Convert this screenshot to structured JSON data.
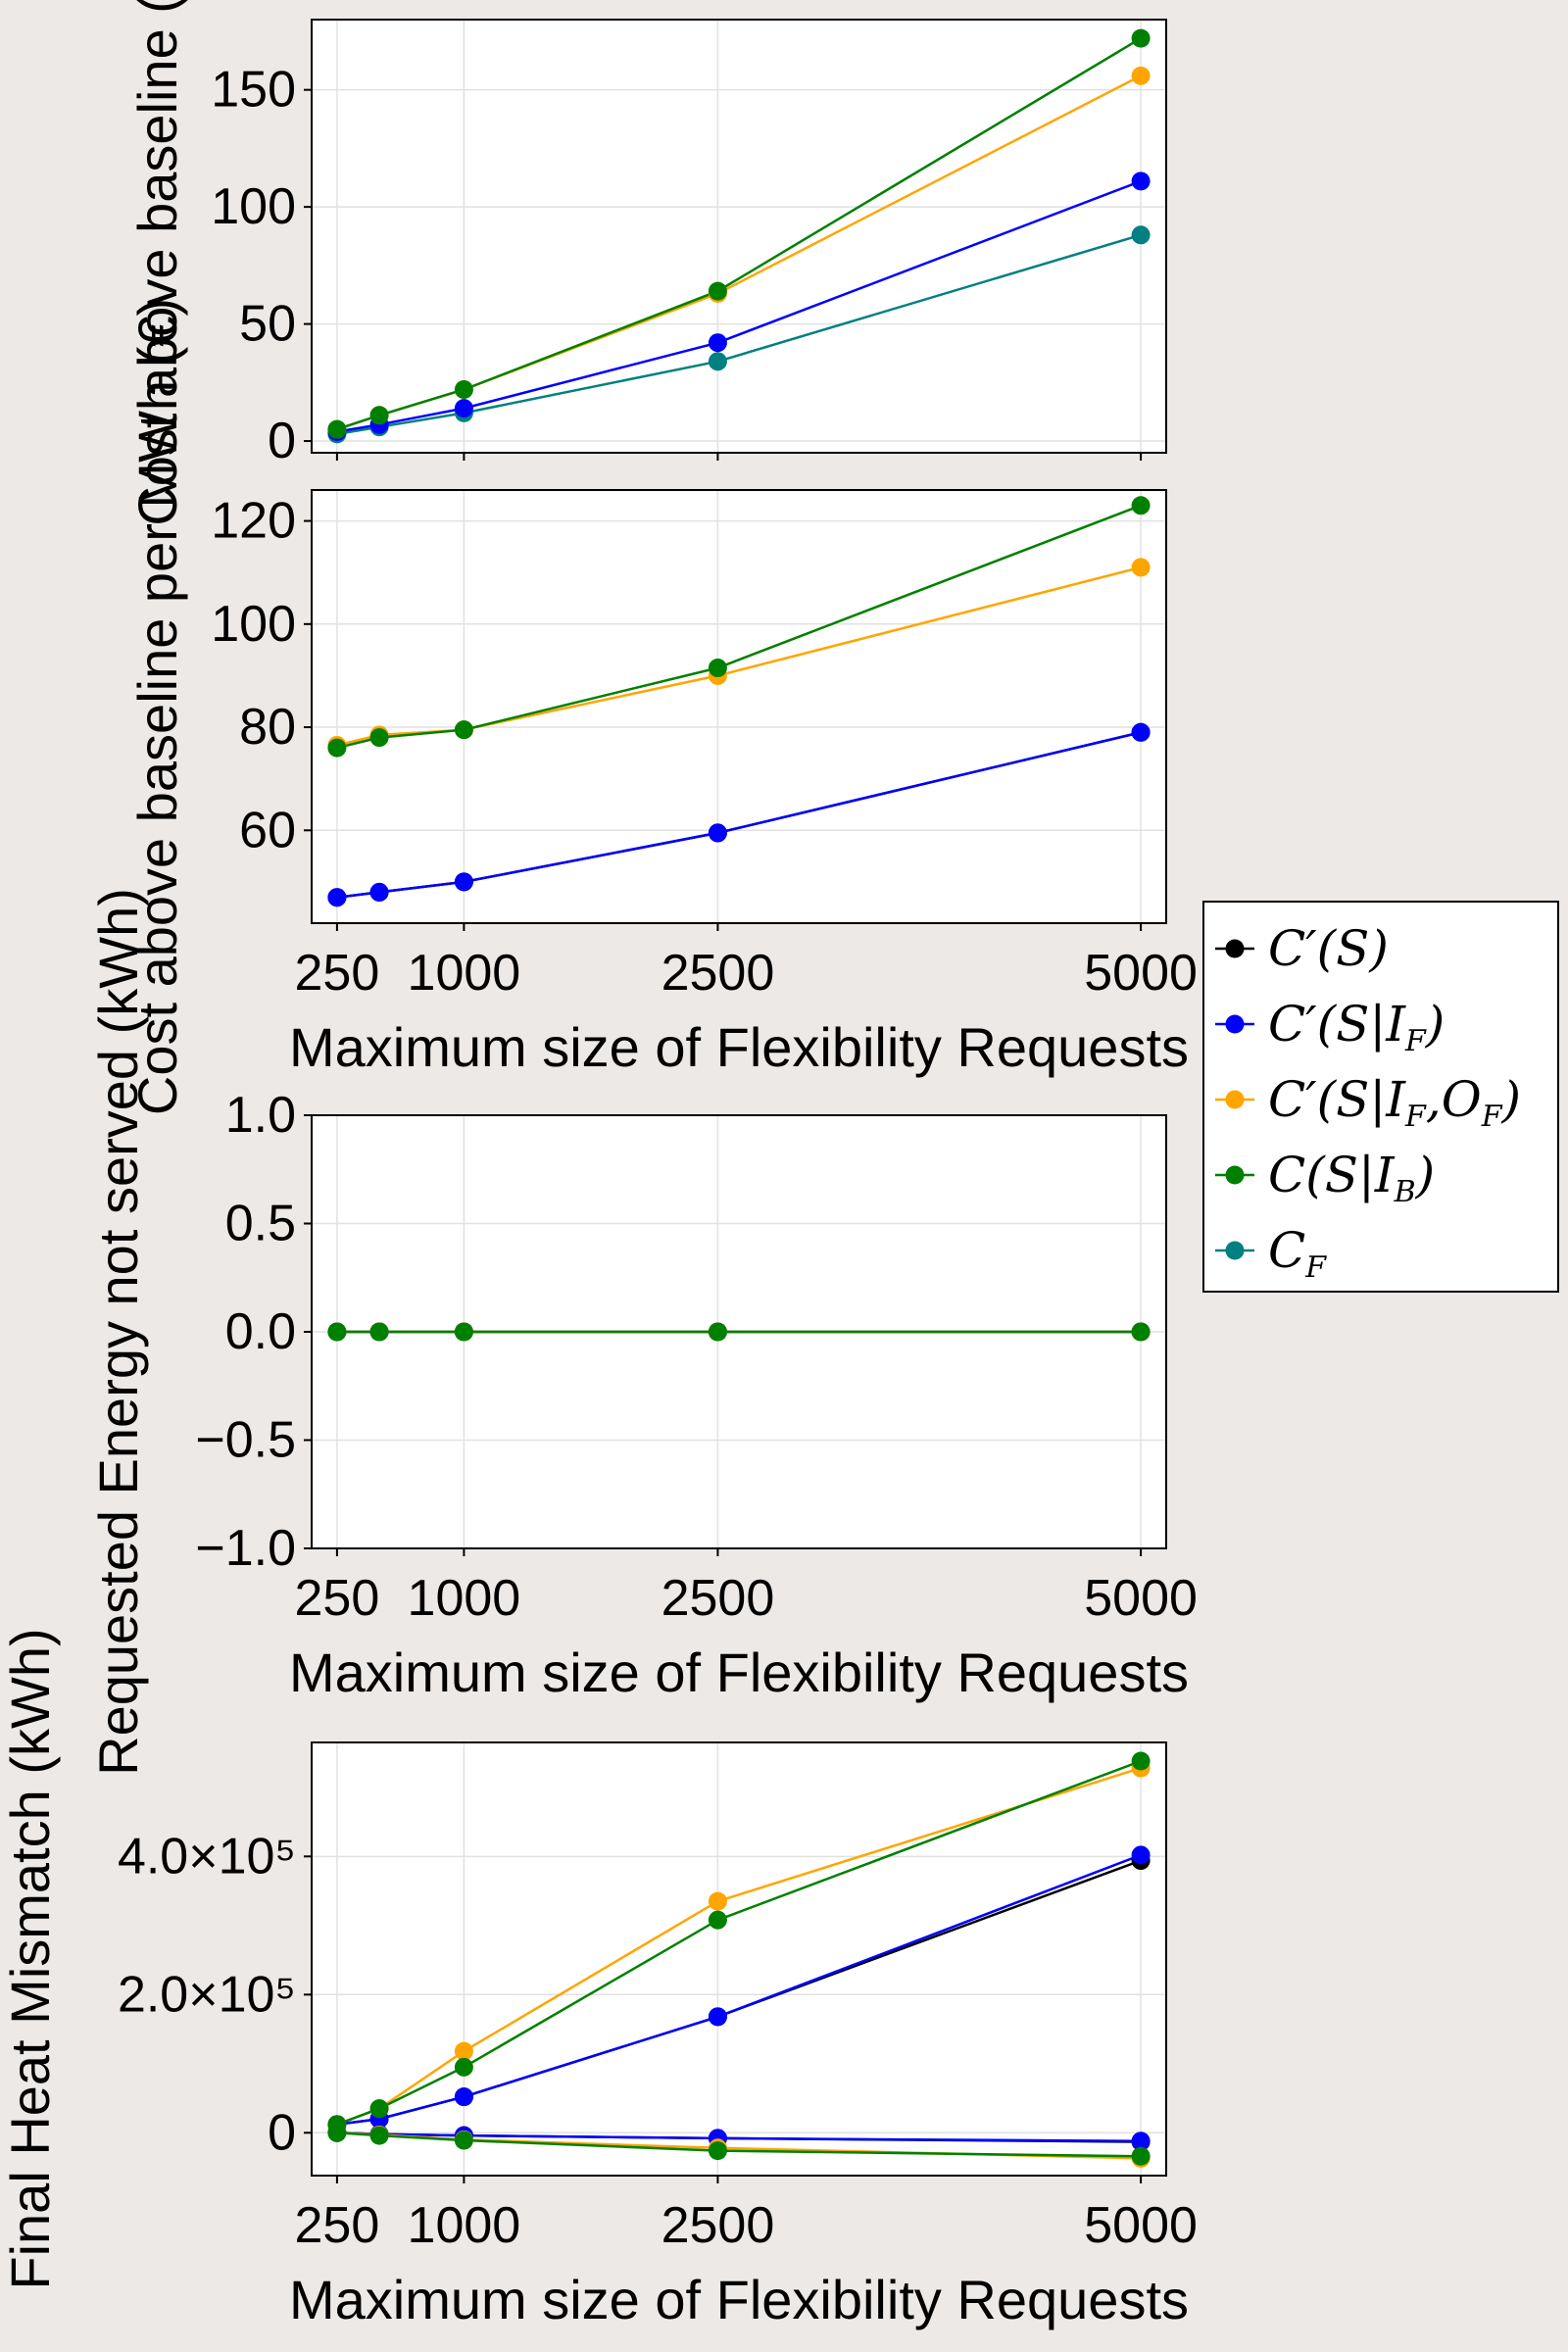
{
  "chart_data": [
    {
      "type": "line",
      "panel": 1,
      "ylabel": "Cost above baseline (€)",
      "xlabel": "",
      "x": [
        250,
        500,
        1000,
        2500,
        5000
      ],
      "xticks": [
        250,
        1000,
        2500,
        5000
      ],
      "xticklabels": [
        "250",
        "1000",
        "2500",
        "5000"
      ],
      "xlim": [
        100,
        5150
      ],
      "ylim": [
        -5,
        180
      ],
      "yticks": [
        0,
        50,
        100,
        150
      ],
      "yticklabels": [
        "0",
        "50",
        "100",
        "150"
      ],
      "grid": true,
      "series": [
        {
          "name": "C_F",
          "color": "#008080",
          "values": [
            3,
            6,
            12,
            34,
            88
          ]
        },
        {
          "name": "C′(S|I_F)",
          "color": "#0000ff",
          "values": [
            4,
            7,
            14,
            42,
            111
          ]
        },
        {
          "name": "C′(S|I_F,O_F)",
          "color": "#ffa500",
          "values": [
            5,
            11,
            22,
            63,
            156
          ]
        },
        {
          "name": "C(S|I_B)",
          "color": "#008000",
          "values": [
            5,
            11,
            22,
            64,
            172
          ]
        }
      ]
    },
    {
      "type": "line",
      "panel": 2,
      "ylabel": "Cost above baseline per MWh (€)",
      "xlabel": "Maximum size of Flexibility Requests",
      "x": [
        250,
        500,
        1000,
        2500,
        5000
      ],
      "xticks": [
        250,
        1000,
        2500,
        5000
      ],
      "xticklabels": [
        "250",
        "1000",
        "2500",
        "5000"
      ],
      "xlim": [
        100,
        5150
      ],
      "ylim": [
        42,
        126
      ],
      "yticks": [
        60,
        80,
        100,
        120
      ],
      "yticklabels": [
        "60",
        "80",
        "100",
        "120"
      ],
      "grid": true,
      "series": [
        {
          "name": "C′(S)",
          "color": "#000000",
          "values": [
            47,
            48,
            50,
            59.5,
            79
          ]
        },
        {
          "name": "C′(S|I_F)",
          "color": "#0000ff",
          "values": [
            47,
            48,
            50,
            59.5,
            79
          ]
        },
        {
          "name": "C′(S|I_F,O_F)",
          "color": "#ffa500",
          "values": [
            76.5,
            78.5,
            79.5,
            90,
            111
          ]
        },
        {
          "name": "C(S|I_B)",
          "color": "#008000",
          "values": [
            76,
            78,
            79.5,
            91.5,
            123
          ]
        }
      ]
    },
    {
      "type": "line",
      "panel": 3,
      "ylabel": "Requested Energy not served (kWh)",
      "xlabel": "Maximum size of Flexibility Requests",
      "x": [
        250,
        500,
        1000,
        2500,
        5000
      ],
      "xticks": [
        250,
        1000,
        2500,
        5000
      ],
      "xticklabels": [
        "250",
        "1000",
        "2500",
        "5000"
      ],
      "xlim": [
        100,
        5150
      ],
      "ylim": [
        -1.0,
        1.0
      ],
      "yticks": [
        -1.0,
        -0.5,
        0.0,
        0.5,
        1.0
      ],
      "yticklabels": [
        "−1.0",
        "−0.5",
        "0.0",
        "0.5",
        "1.0"
      ],
      "grid": true,
      "series": [
        {
          "name": "C′(S)",
          "color": "#000000",
          "values": [
            0,
            0,
            0,
            0,
            0
          ]
        },
        {
          "name": "C′(S|I_F)",
          "color": "#0000ff",
          "values": [
            0,
            0,
            0,
            0,
            0
          ]
        },
        {
          "name": "C′(S|I_F,O_F)",
          "color": "#ffa500",
          "values": [
            0,
            0,
            0,
            0,
            0
          ]
        },
        {
          "name": "C(S|I_B)",
          "color": "#008000",
          "values": [
            0,
            0,
            0,
            0,
            0
          ]
        }
      ]
    },
    {
      "type": "line",
      "panel": 4,
      "ylabel": "Final Heat Mismatch (kWh)",
      "xlabel": "Maximum size of Flexibility Requests",
      "x": [
        250,
        500,
        1000,
        2500,
        5000
      ],
      "xticks": [
        250,
        1000,
        2500,
        5000
      ],
      "xticklabels": [
        "250",
        "1000",
        "2500",
        "5000"
      ],
      "xlim": [
        100,
        5150
      ],
      "ylim": [
        -62000,
        565000
      ],
      "yticks": [
        0,
        200000,
        400000
      ],
      "yticklabels": [
        "0",
        "2.0×10⁵",
        "4.0×10⁵"
      ],
      "grid": true,
      "series": [
        {
          "name": "C′(S)",
          "color": "#000000",
          "values": [
            12000,
            20000,
            52000,
            168000,
            394000
          ]
        },
        {
          "name": "C′(S|I_F)",
          "color": "#0000ff",
          "values": [
            12000,
            20000,
            52000,
            168000,
            402000
          ]
        },
        {
          "name": "C′(S|I_F,O_F)",
          "color": "#ffa500",
          "values": [
            12000,
            35000,
            118000,
            335000,
            528000
          ]
        },
        {
          "name": "C(S|I_B)",
          "color": "#008000",
          "values": [
            12000,
            35000,
            95000,
            308000,
            538000
          ]
        },
        {
          "name": "C′(S)",
          "color": "#000000",
          "values": [
            0,
            -2000,
            -4000,
            -8000,
            -13000
          ]
        },
        {
          "name": "C′(S|I_F)",
          "color": "#0000ff",
          "values": [
            0,
            -2000,
            -4000,
            -8000,
            -12000
          ]
        },
        {
          "name": "C′(S|I_F,O_F)",
          "color": "#ffa500",
          "values": [
            0,
            -3000,
            -10000,
            -22000,
            -37000
          ]
        },
        {
          "name": "C(S|I_B)",
          "color": "#008000",
          "values": [
            0,
            -4000,
            -11000,
            -26000,
            -34000
          ]
        }
      ]
    }
  ],
  "legend": {
    "placement": "right",
    "entries": [
      {
        "name": "C′(S)",
        "base": "C′(S)",
        "sub": "",
        "tail": "",
        "color": "#000000"
      },
      {
        "name": "C′(S|I_F)",
        "base": "C′(S|I",
        "sub": "F",
        "tail": ")",
        "color": "#0000ff"
      },
      {
        "name": "C′(S|I_F,O_F)",
        "base": "C′(S|I",
        "sub": "F",
        "tail": ",O",
        "sub2": "F",
        "tail2": ")",
        "color": "#ffa500"
      },
      {
        "name": "C(S|I_B)",
        "base": "C(S|I",
        "sub": "B",
        "tail": ")",
        "color": "#008000"
      },
      {
        "name": "C_F",
        "base": "C",
        "sub": "F",
        "tail": "",
        "color": "#008080"
      }
    ]
  }
}
